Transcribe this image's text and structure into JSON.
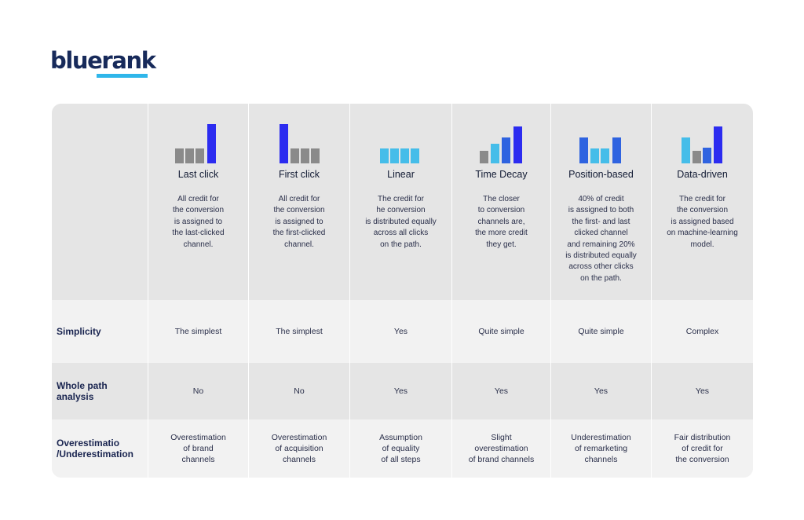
{
  "brand": {
    "logo_text": "bluerank",
    "accent": "#2fb6ea",
    "navy": "#172a5a"
  },
  "colors": {
    "gray": "#8a8a8a",
    "blue": "#2c2cf0",
    "light_blue": "#45bde9",
    "mid_blue": "#2f63e0"
  },
  "models": [
    {
      "name": "Last click",
      "icon": "last-click-bars-icon",
      "description": [
        "All credit for",
        "the conversion",
        "is assigned to",
        "the last-clicked",
        "channel."
      ]
    },
    {
      "name": "First click",
      "icon": "first-click-bars-icon",
      "description": [
        "All credit for",
        "the conversion",
        "is assigned to",
        "the first-clicked",
        "channel."
      ]
    },
    {
      "name": "Linear",
      "icon": "linear-bars-icon",
      "description": [
        "The credit for",
        "he conversion",
        "is distributed equally",
        "across all clicks",
        "on the path."
      ]
    },
    {
      "name": "Time Decay",
      "icon": "time-decay-bars-icon",
      "description": [
        "The closer",
        "to conversion",
        "channels are,",
        "the more credit",
        "they get."
      ]
    },
    {
      "name": "Position-based",
      "icon": "position-based-bars-icon",
      "description": [
        "40% of credit",
        "is assigned to both",
        "the first- and last",
        "clicked channel",
        "and remaining 20%",
        "is distributed equally",
        "across other clicks",
        "on the path."
      ]
    },
    {
      "name": "Data-driven",
      "icon": "data-driven-bars-icon",
      "description": [
        "The credit for",
        "the conversion",
        "is assigned based",
        "on machine-learning",
        "model."
      ]
    }
  ],
  "rows": {
    "simplicity": {
      "label": "Simplicity",
      "values": [
        "The simplest",
        "The simplest",
        "Yes",
        "Quite simple",
        "Quite simple",
        "Complex"
      ]
    },
    "whole_path": {
      "label": [
        "Whole path",
        "analysis"
      ],
      "values": [
        "No",
        "No",
        "Yes",
        "Yes",
        "Yes",
        "Yes"
      ]
    },
    "overestimation": {
      "label": [
        "Overestimatio",
        "/Underestimation"
      ],
      "values": [
        [
          "Overestimation",
          "of brand",
          "channels"
        ],
        [
          "Overestimation",
          "of acquisition",
          "channels"
        ],
        [
          "Assumption",
          "of equality",
          "of all steps"
        ],
        [
          "Slight",
          "overestimation",
          "of brand channels"
        ],
        [
          "Underestimation",
          "of remarketing",
          "channels"
        ],
        [
          "Fair distribution",
          "of credit for",
          "the conversion"
        ]
      ]
    }
  }
}
